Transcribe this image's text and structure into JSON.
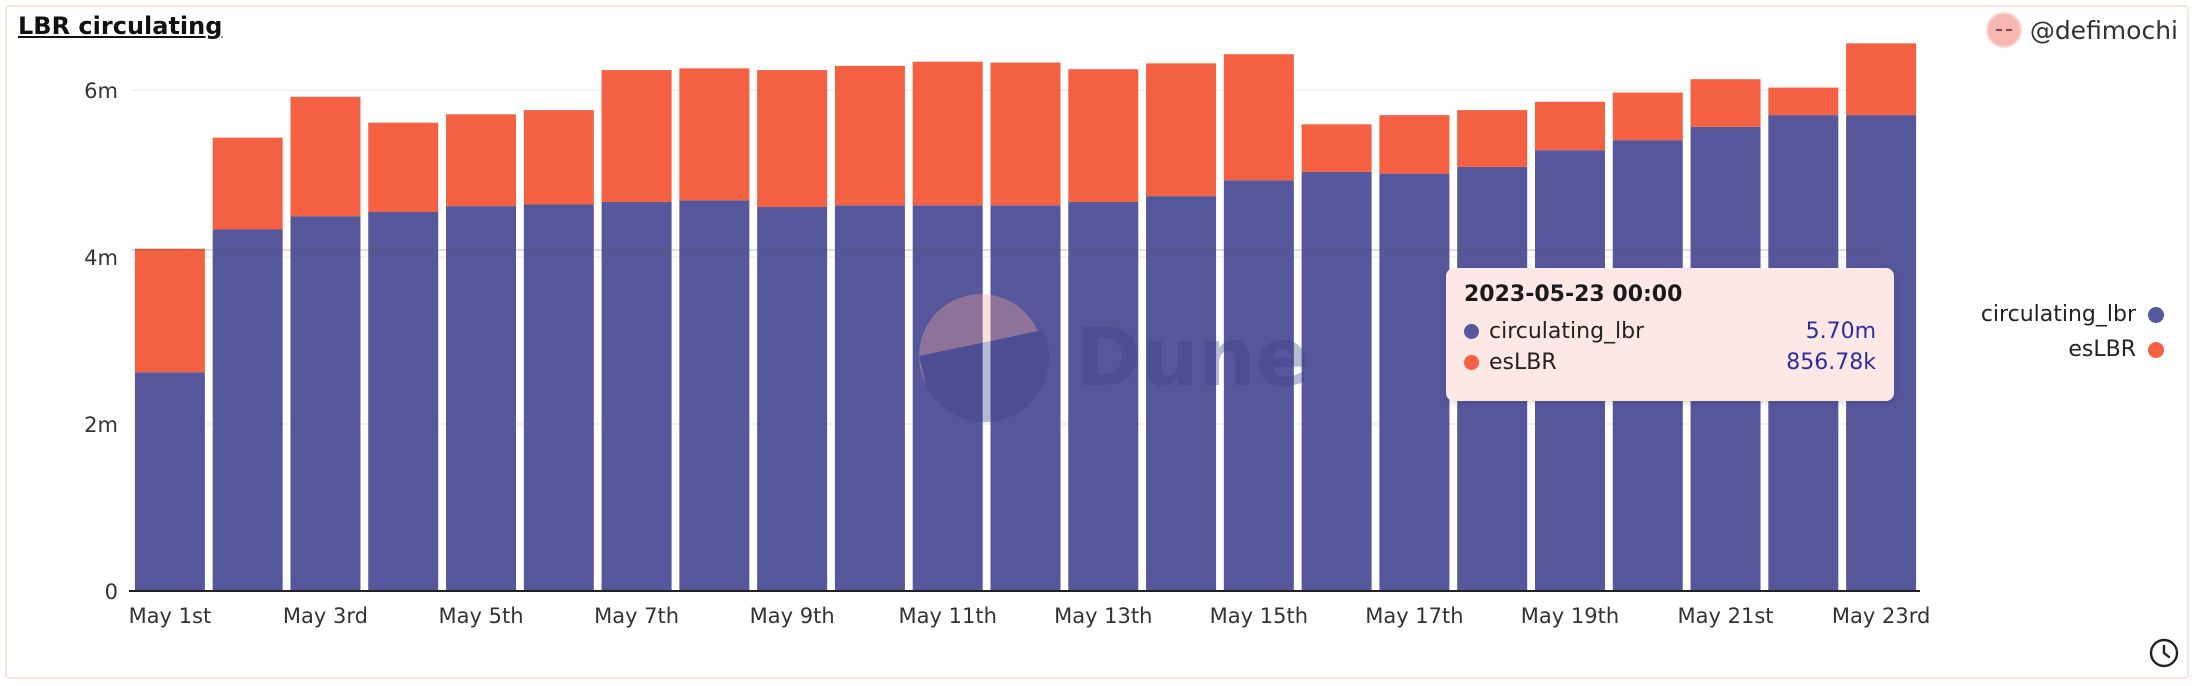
{
  "header": {
    "title": "LBR circulating",
    "author": "@defimochi"
  },
  "chart_data": {
    "type": "bar",
    "stacked": true,
    "categories": [
      "May 1st",
      "May 2nd",
      "May 3rd",
      "May 4th",
      "May 5th",
      "May 6th",
      "May 7th",
      "May 8th",
      "May 9th",
      "May 10th",
      "May 11th",
      "May 12th",
      "May 13th",
      "May 14th",
      "May 15th",
      "May 16th",
      "May 17th",
      "May 18th",
      "May 19th",
      "May 20th",
      "May 21st",
      "May 22nd",
      "May 23rd"
    ],
    "x_tick_labels": [
      "May 1st",
      "May 3rd",
      "May 5th",
      "May 7th",
      "May 9th",
      "May 11th",
      "May 13th",
      "May 15th",
      "May 17th",
      "May 19th",
      "May 21st",
      "May 23rd"
    ],
    "series": [
      {
        "name": "circulating_lbr",
        "color": "#56579b",
        "values": [
          2.62,
          4.33,
          4.49,
          4.54,
          4.61,
          4.63,
          4.66,
          4.68,
          4.6,
          4.62,
          4.62,
          4.62,
          4.66,
          4.73,
          4.92,
          5.02,
          5.0,
          5.08,
          5.28,
          5.4,
          5.56,
          5.7,
          5.7
        ]
      },
      {
        "name": "esLBR",
        "color": "#f36142",
        "values": [
          1.48,
          1.1,
          1.43,
          1.07,
          1.1,
          1.13,
          1.58,
          1.58,
          1.64,
          1.67,
          1.72,
          1.71,
          1.59,
          1.59,
          1.51,
          0.57,
          0.7,
          0.68,
          0.58,
          0.57,
          0.57,
          0.33,
          0.86
        ]
      }
    ],
    "y_ticks": [
      0,
      2,
      4,
      6
    ],
    "y_tick_labels": [
      "0",
      "2m",
      "4m",
      "6m"
    ],
    "ylim": [
      0,
      6.6
    ],
    "legend_position": "right",
    "grid": true,
    "watermark": "Dune"
  },
  "legend": {
    "items": [
      {
        "label": "circulating_lbr",
        "color": "#56579b"
      },
      {
        "label": "esLBR",
        "color": "#f36142"
      }
    ]
  },
  "tooltip": {
    "title": "2023-05-23 00:00",
    "rows": [
      {
        "label": "circulating_lbr",
        "value": "5.70m",
        "color": "#56579b"
      },
      {
        "label": "esLBR",
        "value": "856.78k",
        "color": "#f36142"
      }
    ]
  }
}
